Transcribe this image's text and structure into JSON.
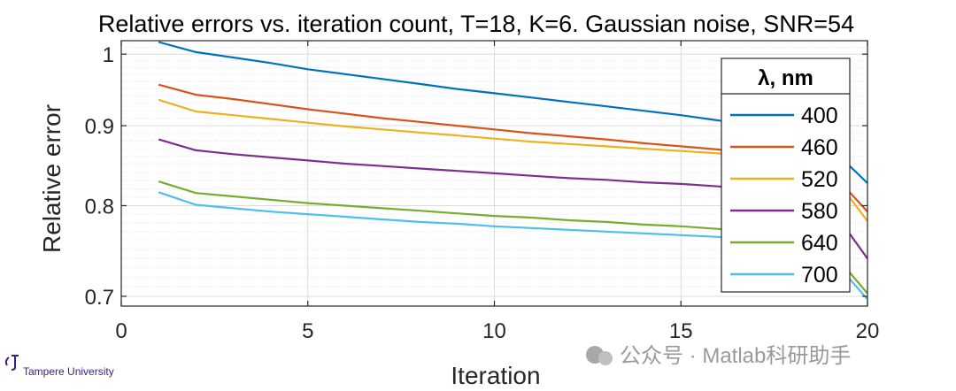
{
  "chart_data": {
    "type": "line",
    "title": "Relative errors vs. iteration count, T=18, K=6. Gaussian noise, SNR=54",
    "xlabel": "Iteration",
    "ylabel": "Relative error",
    "xlim": [
      0,
      20
    ],
    "ylim": [
      0.69,
      1.02
    ],
    "yscale": "log",
    "xticks": [
      0,
      5,
      10,
      15,
      20
    ],
    "xtick_labels": [
      "0",
      "5",
      "10",
      "15",
      "20"
    ],
    "yticks": [
      0.7,
      0.8,
      0.9,
      1
    ],
    "ytick_labels": [
      "0.7",
      "0.8",
      "0.9",
      "1"
    ],
    "grid": true,
    "minor_grid": true,
    "legend": {
      "title": "λ, nm",
      "position": "top-right"
    },
    "x": [
      1,
      2,
      3,
      4,
      5,
      6,
      7,
      8,
      9,
      10,
      11,
      12,
      13,
      14,
      15,
      16,
      17,
      18,
      19,
      20
    ],
    "series": [
      {
        "name": "400",
        "color": "#0072BD",
        "values": [
          1.018,
          1.003,
          0.995,
          0.987,
          0.978,
          0.971,
          0.964,
          0.957,
          0.95,
          0.944,
          0.938,
          0.932,
          0.926,
          0.92,
          0.914,
          0.907,
          0.898,
          0.888,
          0.872,
          0.827
        ]
      },
      {
        "name": "460",
        "color": "#D95319",
        "values": [
          0.956,
          0.942,
          0.936,
          0.929,
          0.922,
          0.916,
          0.91,
          0.905,
          0.9,
          0.895,
          0.89,
          0.886,
          0.882,
          0.877,
          0.873,
          0.869,
          0.863,
          0.855,
          0.842,
          0.793
        ]
      },
      {
        "name": "520",
        "color": "#EDB120",
        "values": [
          0.935,
          0.919,
          0.914,
          0.909,
          0.904,
          0.899,
          0.895,
          0.891,
          0.887,
          0.883,
          0.879,
          0.876,
          0.873,
          0.87,
          0.867,
          0.864,
          0.859,
          0.853,
          0.841,
          0.782
        ]
      },
      {
        "name": "580",
        "color": "#7E2F8E",
        "values": [
          0.882,
          0.868,
          0.863,
          0.859,
          0.855,
          0.851,
          0.848,
          0.845,
          0.842,
          0.839,
          0.836,
          0.833,
          0.831,
          0.828,
          0.826,
          0.823,
          0.819,
          0.813,
          0.799,
          0.74
        ]
      },
      {
        "name": "640",
        "color": "#77AC30",
        "values": [
          0.829,
          0.815,
          0.811,
          0.807,
          0.803,
          0.8,
          0.797,
          0.794,
          0.791,
          0.788,
          0.786,
          0.783,
          0.781,
          0.778,
          0.776,
          0.773,
          0.77,
          0.765,
          0.75,
          0.703
        ]
      },
      {
        "name": "700",
        "color": "#4DBEEE",
        "values": [
          0.816,
          0.801,
          0.797,
          0.793,
          0.79,
          0.787,
          0.784,
          0.781,
          0.779,
          0.776,
          0.774,
          0.772,
          0.77,
          0.768,
          0.766,
          0.764,
          0.761,
          0.756,
          0.742,
          0.697
        ]
      }
    ]
  },
  "logo": {
    "text": "Tampere University"
  },
  "watermark": {
    "text": "公众号 · Matlab科研助手"
  }
}
